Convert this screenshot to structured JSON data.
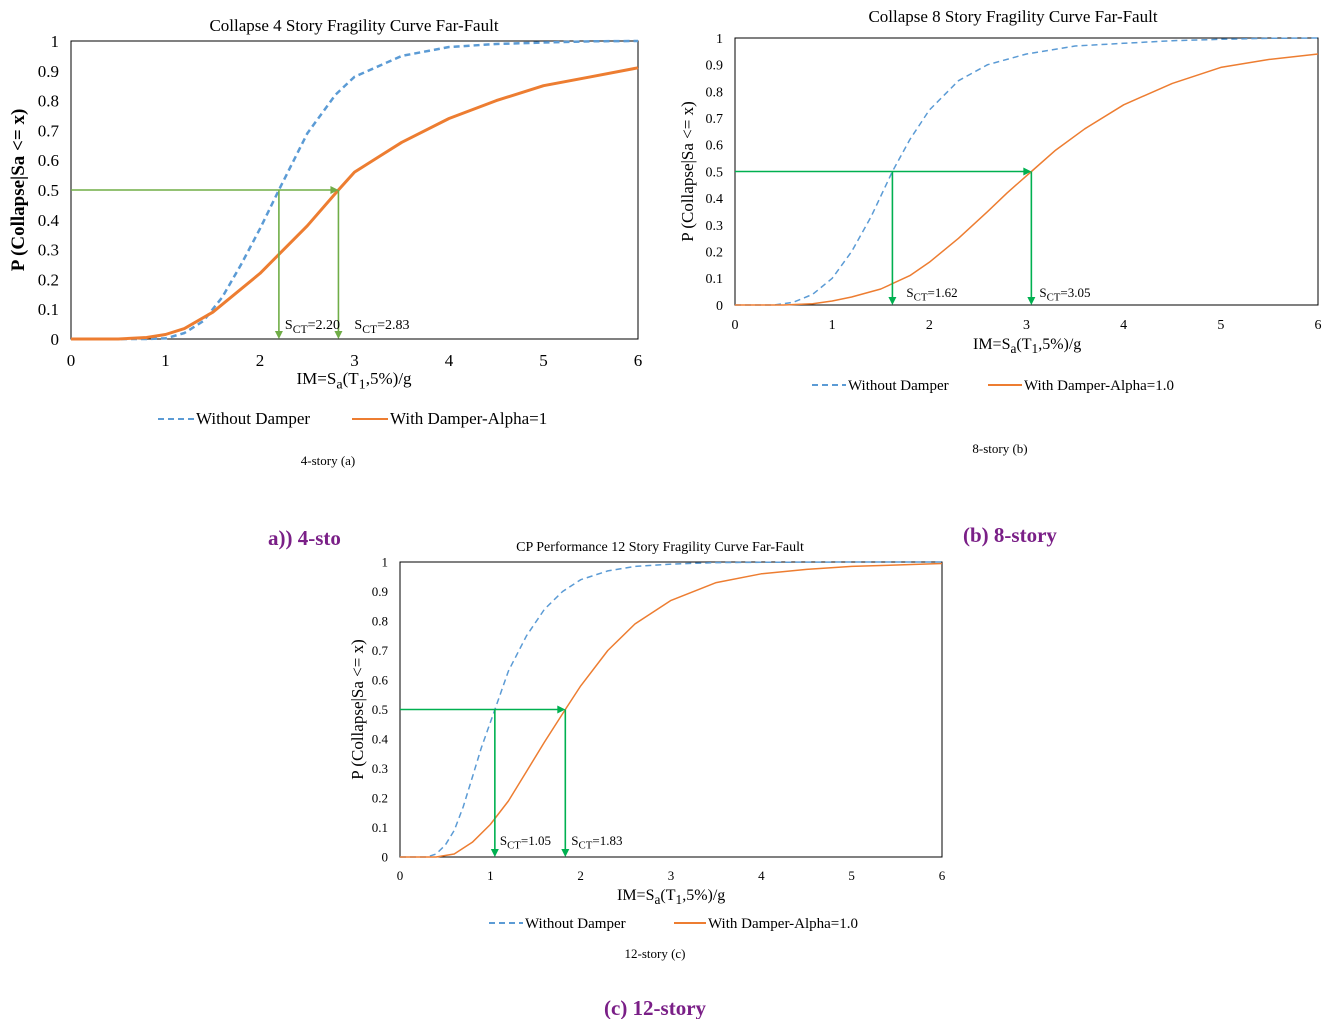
{
  "colors": {
    "blue": "#5b9bd5",
    "orange": "#ed7d31",
    "green_a": "#70ad47",
    "green": "#00b050",
    "purple": "#7a1f87"
  },
  "panels": [
    {
      "caption": "4-story (a)",
      "subcaption": "a)) 4-sto",
      "legend": [
        "Without Damper",
        "With Damper-Alpha=1"
      ],
      "sct_labels": [
        "S<sub>CT</sub>=2.20",
        "S<sub>CT</sub>=2.83"
      ]
    },
    {
      "caption": "8-story (b)",
      "subcaption": "(b) 8-story",
      "legend": [
        "Without Damper",
        "With Damper-Alpha=1.0"
      ],
      "sct_labels": [
        "S<sub>CT</sub>=1.62",
        "S<sub>CT</sub>=3.05"
      ]
    },
    {
      "caption": "12-story (c)",
      "subcaption": "(c) 12-story",
      "legend": [
        "Without Damper",
        "With Damper-Alpha=1.0"
      ],
      "sct_labels": [
        "S<sub>CT</sub>=1.05",
        "S<sub>CT</sub>=1.83"
      ]
    }
  ],
  "chart_data": [
    {
      "type": "line",
      "title": "Collapse 4 Story Fragility Curve Far-Fault",
      "xlabel": "IM=S<sub>a</sub>(T<sub>1</sub>,5%)/g",
      "ylabel": "P (Collapse|Sa <= x)",
      "xlim": [
        0,
        6
      ],
      "ylim": [
        0,
        1
      ],
      "xticks": [
        0,
        1,
        2,
        3,
        4,
        5,
        6
      ],
      "yticks": [
        0,
        0.1,
        0.2,
        0.3,
        0.4,
        0.5,
        0.6,
        0.7,
        0.8,
        0.9,
        1
      ],
      "series": [
        {
          "name": "Without Damper",
          "style": "dashed",
          "color": "#5b9bd5",
          "x": [
            0,
            0.8,
            1.0,
            1.2,
            1.4,
            1.6,
            1.8,
            2.0,
            2.2,
            2.5,
            2.8,
            3.0,
            3.5,
            4.0,
            4.5,
            5.0,
            5.5,
            6.0
          ],
          "y": [
            0,
            0,
            0.002,
            0.02,
            0.06,
            0.14,
            0.25,
            0.37,
            0.5,
            0.69,
            0.82,
            0.88,
            0.95,
            0.98,
            0.99,
            0.995,
            0.999,
            1.0
          ]
        },
        {
          "name": "With Damper-Alpha=1",
          "style": "solid",
          "color": "#ed7d31",
          "x": [
            0,
            0.5,
            0.8,
            1.0,
            1.2,
            1.5,
            2.0,
            2.5,
            2.83,
            3.0,
            3.5,
            4.0,
            4.5,
            5.0,
            5.5,
            6.0
          ],
          "y": [
            0,
            0,
            0.005,
            0.015,
            0.035,
            0.09,
            0.22,
            0.38,
            0.5,
            0.56,
            0.66,
            0.74,
            0.8,
            0.85,
            0.88,
            0.91
          ]
        }
      ],
      "markers": [
        {
          "x": 2.2,
          "y": 0.5,
          "label": "S<sub>CT</sub>=2.20"
        },
        {
          "x": 2.83,
          "y": 0.5,
          "label": "S<sub>CT</sub>=2.83"
        }
      ],
      "legend_position": "bottom"
    },
    {
      "type": "line",
      "title": "Collapse 8 Story Fragility Curve Far-Fault",
      "xlabel": "IM=S<sub>a</sub>(T<sub>1</sub>,5%)/g",
      "ylabel": "P (Collapse|Sa <= x)",
      "xlim": [
        0,
        6
      ],
      "ylim": [
        0,
        1
      ],
      "xticks": [
        0,
        1,
        2,
        3,
        4,
        5,
        6
      ],
      "yticks": [
        0,
        0.1,
        0.2,
        0.3,
        0.4,
        0.5,
        0.6,
        0.7,
        0.8,
        0.9,
        1
      ],
      "series": [
        {
          "name": "Without Damper",
          "style": "dashed",
          "color": "#5b9bd5",
          "x": [
            0,
            0.4,
            0.6,
            0.8,
            1.0,
            1.2,
            1.4,
            1.62,
            1.8,
            2.0,
            2.3,
            2.6,
            3.0,
            3.5,
            4.0,
            4.5,
            5.0,
            5.5,
            6.0
          ],
          "y": [
            0,
            0,
            0.01,
            0.04,
            0.1,
            0.2,
            0.33,
            0.5,
            0.62,
            0.73,
            0.84,
            0.9,
            0.94,
            0.97,
            0.98,
            0.99,
            0.995,
            0.999,
            1.0
          ]
        },
        {
          "name": "With Damper-Alpha=1.0",
          "style": "solid",
          "color": "#ed7d31",
          "x": [
            0,
            0.5,
            0.8,
            1.0,
            1.2,
            1.5,
            1.8,
            2.0,
            2.3,
            2.6,
            2.8,
            3.05,
            3.3,
            3.6,
            4.0,
            4.5,
            5.0,
            5.5,
            6.0
          ],
          "y": [
            0,
            0,
            0.005,
            0.015,
            0.03,
            0.06,
            0.11,
            0.16,
            0.25,
            0.35,
            0.42,
            0.5,
            0.58,
            0.66,
            0.75,
            0.83,
            0.89,
            0.92,
            0.94
          ]
        }
      ],
      "markers": [
        {
          "x": 1.62,
          "y": 0.5,
          "label": "S<sub>CT</sub>=1.62"
        },
        {
          "x": 3.05,
          "y": 0.5,
          "label": "S<sub>CT</sub>=3.05"
        }
      ],
      "legend_position": "bottom"
    },
    {
      "type": "line",
      "title": "CP Performance 12 Story Fragility Curve Far-Fault",
      "xlabel": "IM=S<sub>a</sub>(T<sub>1</sub>,5%)/g",
      "ylabel": "P (Collapse|Sa <= x)",
      "xlim": [
        0,
        6
      ],
      "ylim": [
        0,
        1
      ],
      "xticks": [
        0,
        1,
        2,
        3,
        4,
        5,
        6
      ],
      "yticks": [
        0,
        0.1,
        0.2,
        0.3,
        0.4,
        0.5,
        0.6,
        0.7,
        0.8,
        0.9,
        1
      ],
      "series": [
        {
          "name": "Without Damper",
          "style": "dashed",
          "color": "#5b9bd5",
          "x": [
            0,
            0.3,
            0.4,
            0.5,
            0.6,
            0.7,
            0.8,
            0.9,
            1.05,
            1.2,
            1.4,
            1.6,
            1.8,
            2.0,
            2.3,
            2.6,
            3.0,
            3.5,
            4.0,
            5.0,
            6.0
          ],
          "y": [
            0,
            0,
            0.01,
            0.04,
            0.09,
            0.17,
            0.27,
            0.37,
            0.5,
            0.63,
            0.75,
            0.84,
            0.9,
            0.94,
            0.97,
            0.985,
            0.993,
            0.998,
            0.999,
            1.0,
            1.0
          ]
        },
        {
          "name": "With Damper-Alpha=1.0",
          "style": "solid",
          "color": "#ed7d31",
          "x": [
            0,
            0.4,
            0.6,
            0.8,
            1.0,
            1.2,
            1.4,
            1.6,
            1.83,
            2.0,
            2.3,
            2.6,
            3.0,
            3.5,
            4.0,
            4.5,
            5.0,
            5.5,
            6.0
          ],
          "y": [
            0,
            0,
            0.01,
            0.05,
            0.11,
            0.19,
            0.29,
            0.39,
            0.5,
            0.58,
            0.7,
            0.79,
            0.87,
            0.93,
            0.96,
            0.975,
            0.985,
            0.99,
            0.995
          ]
        }
      ],
      "markers": [
        {
          "x": 1.05,
          "y": 0.5,
          "label": "S<sub>CT</sub>=1.05"
        },
        {
          "x": 1.83,
          "y": 0.5,
          "label": "S<sub>CT</sub>=1.83"
        }
      ],
      "legend_position": "bottom"
    }
  ]
}
